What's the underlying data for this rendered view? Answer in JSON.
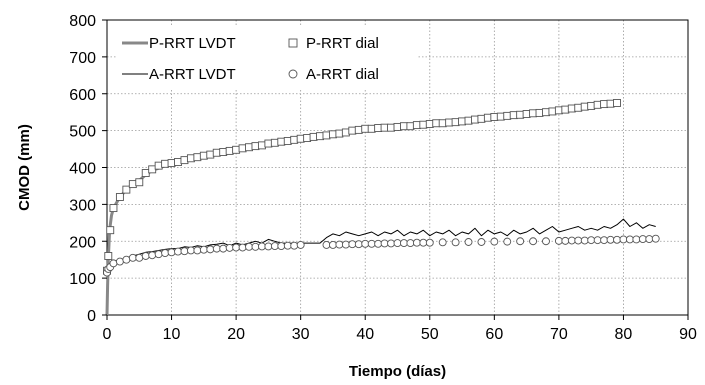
{
  "chart_data": {
    "type": "line",
    "title": "",
    "xlabel": "Tiempo (días)",
    "ylabel": "CMOD (mm)",
    "xlim": [
      0,
      90
    ],
    "ylim": [
      0,
      800
    ],
    "xticks": [
      "0",
      "10",
      "20",
      "30",
      "40",
      "50",
      "60",
      "70",
      "80",
      "90"
    ],
    "yticks": [
      "0",
      "100",
      "200",
      "300",
      "400",
      "500",
      "600",
      "700",
      "800"
    ],
    "grid": true,
    "legend_position": "top-left",
    "series": [
      {
        "name": "P-RRT LVDT",
        "style": "line",
        "color": "#888888",
        "x": [
          0,
          0.1,
          0.2,
          0.4,
          0.7,
          1,
          1.5,
          2,
          3,
          4,
          5,
          6,
          7,
          8,
          9,
          10,
          12,
          14,
          16,
          18,
          20,
          22,
          24,
          26,
          28,
          30,
          32,
          34,
          36,
          38,
          40,
          42,
          45,
          48,
          50,
          55,
          60,
          65,
          70,
          75,
          79
        ],
        "y": [
          0,
          80,
          150,
          230,
          270,
          290,
          305,
          320,
          340,
          355,
          365,
          380,
          392,
          398,
          405,
          410,
          420,
          428,
          435,
          442,
          450,
          455,
          462,
          468,
          474,
          478,
          483,
          487,
          492,
          497,
          500,
          505,
          510,
          513,
          518,
          527,
          535,
          545,
          555,
          566,
          575
        ]
      },
      {
        "name": "P-RRT dial",
        "style": "marker-square",
        "color": "#555555",
        "x": [
          0,
          0.2,
          0.5,
          1,
          2,
          3,
          4,
          5,
          6,
          7,
          8,
          9,
          10,
          11,
          12,
          13,
          14,
          15,
          16,
          17,
          18,
          19,
          20,
          21,
          22,
          23,
          24,
          25,
          26,
          27,
          28,
          29,
          30,
          31,
          32,
          33,
          34,
          35,
          36,
          37,
          38,
          39,
          40,
          41,
          42,
          43,
          44,
          45,
          46,
          47,
          48,
          49,
          50,
          51,
          52,
          53,
          54,
          55,
          56,
          57,
          58,
          59,
          60,
          61,
          62,
          63,
          64,
          65,
          66,
          67,
          68,
          69,
          70,
          71,
          72,
          73,
          74,
          75,
          76,
          77,
          78,
          79
        ],
        "y": [
          120,
          160,
          230,
          290,
          320,
          340,
          355,
          360,
          385,
          395,
          405,
          410,
          412,
          415,
          420,
          425,
          428,
          432,
          435,
          440,
          442,
          445,
          448,
          452,
          455,
          458,
          460,
          465,
          467,
          470,
          472,
          475,
          478,
          480,
          483,
          485,
          487,
          490,
          492,
          495,
          500,
          502,
          505,
          505,
          507,
          508,
          508,
          510,
          512,
          512,
          515,
          516,
          518,
          520,
          520,
          522,
          523,
          525,
          527,
          530,
          532,
          535,
          537,
          538,
          540,
          542,
          543,
          545,
          547,
          548,
          550,
          552,
          555,
          557,
          560,
          562,
          565,
          567,
          570,
          572,
          573,
          575
        ]
      },
      {
        "name": "A-RRT LVDT",
        "style": "line",
        "color": "#000000",
        "x": [
          0,
          0.2,
          0.5,
          1,
          2,
          3,
          4,
          5,
          6,
          7,
          8,
          9,
          10,
          11,
          12,
          13,
          14,
          15,
          16,
          17,
          18,
          19,
          20,
          21,
          22,
          23,
          24,
          25,
          26,
          27,
          28,
          29,
          30,
          31,
          32,
          33,
          34,
          35,
          36,
          37,
          38,
          39,
          40,
          41,
          42,
          43,
          44,
          45,
          46,
          47,
          48,
          49,
          50,
          51,
          52,
          53,
          54,
          55,
          56,
          57,
          58,
          59,
          60,
          61,
          62,
          63,
          64,
          65,
          66,
          67,
          68,
          69,
          70,
          71,
          72,
          73,
          74,
          75,
          76,
          77,
          78,
          79,
          80,
          81,
          82,
          83,
          84,
          85
        ],
        "y": [
          130,
          135,
          140,
          145,
          150,
          155,
          160,
          165,
          170,
          172,
          175,
          178,
          180,
          180,
          185,
          183,
          188,
          185,
          190,
          192,
          195,
          188,
          195,
          190,
          195,
          200,
          195,
          205,
          200,
          195,
          195,
          195,
          195,
          195,
          195,
          195,
          210,
          220,
          215,
          225,
          220,
          215,
          220,
          225,
          215,
          225,
          220,
          230,
          215,
          225,
          220,
          230,
          215,
          225,
          220,
          230,
          215,
          225,
          220,
          235,
          215,
          230,
          220,
          225,
          215,
          230,
          220,
          225,
          235,
          220,
          230,
          240,
          225,
          230,
          235,
          240,
          230,
          235,
          230,
          240,
          235,
          245,
          260,
          240,
          250,
          235,
          245,
          240
        ]
      },
      {
        "name": "A-RRT dial",
        "style": "marker-circle",
        "color": "#555555",
        "x": [
          0,
          0.2,
          0.5,
          1,
          2,
          3,
          4,
          5,
          6,
          7,
          8,
          9,
          10,
          11,
          12,
          13,
          14,
          15,
          16,
          17,
          18,
          19,
          20,
          21,
          22,
          23,
          24,
          25,
          26,
          27,
          28,
          29,
          30,
          34,
          35,
          36,
          37,
          38,
          39,
          40,
          41,
          42,
          43,
          44,
          45,
          46,
          47,
          48,
          49,
          50,
          52,
          54,
          56,
          58,
          60,
          62,
          64,
          66,
          68,
          70,
          71,
          72,
          73,
          74,
          75,
          76,
          77,
          78,
          79,
          80,
          81,
          82,
          83,
          84,
          85
        ],
        "y": [
          115,
          125,
          130,
          140,
          145,
          150,
          155,
          155,
          160,
          162,
          165,
          168,
          170,
          172,
          173,
          175,
          175,
          177,
          178,
          180,
          180,
          182,
          183,
          183,
          185,
          185,
          186,
          186,
          187,
          187,
          188,
          188,
          190,
          190,
          190,
          191,
          191,
          192,
          192,
          193,
          193,
          193,
          194,
          194,
          195,
          195,
          195,
          196,
          196,
          196,
          197,
          197,
          198,
          198,
          199,
          199,
          200,
          200,
          200,
          201,
          201,
          202,
          202,
          202,
          203,
          203,
          203,
          204,
          204,
          205,
          205,
          205,
          206,
          206,
          207
        ]
      }
    ]
  }
}
